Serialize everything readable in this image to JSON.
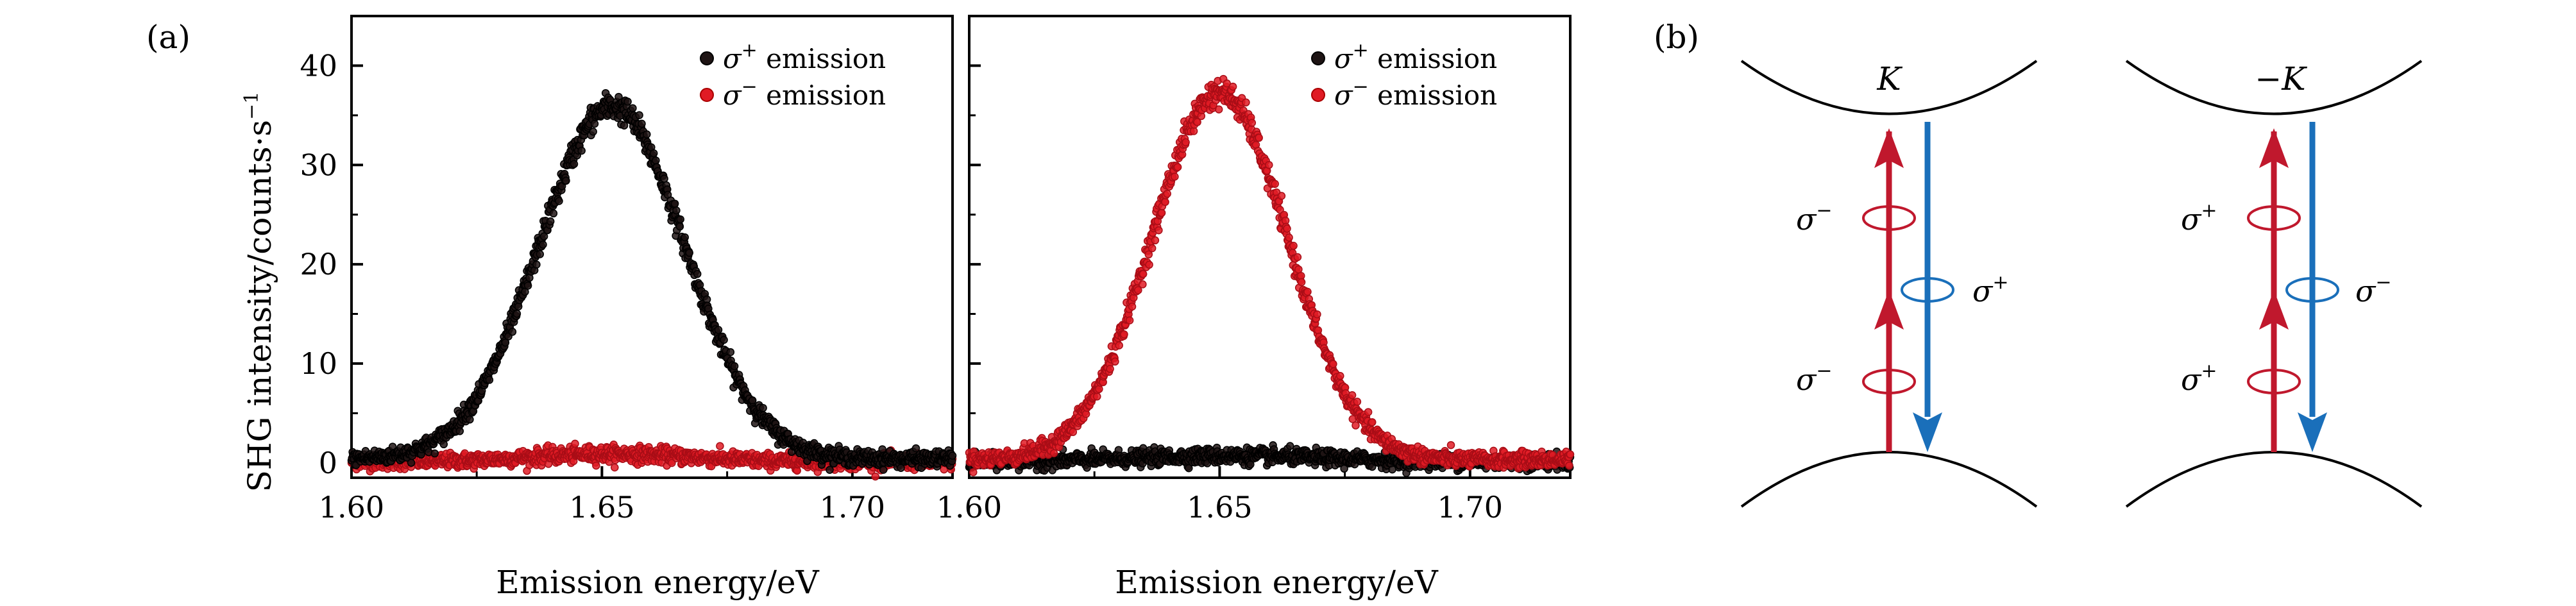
{
  "panel_labels": {
    "a": "(a)",
    "b": "(b)"
  },
  "legend": {
    "entries": [
      {
        "symbol": "σ",
        "sup": "+",
        "text": " emission",
        "color": "#1e1414"
      },
      {
        "symbol": "σ",
        "sup": "−",
        "text": " emission",
        "color": "#e01b24"
      }
    ]
  },
  "chart_data": [
    {
      "type": "scatter",
      "panel": "left",
      "xlabel": "Emission energy/eV",
      "ylabel": "SHG intensity/counts·s",
      "ylabel_sup": "−1",
      "xlim": [
        1.6,
        1.72
      ],
      "ylim": [
        -1.5,
        45
      ],
      "x_ticks": [
        1.6,
        1.65,
        1.7
      ],
      "x_tick_labels": [
        "1.60",
        "1.65",
        "1.70"
      ],
      "y_ticks": [
        0,
        10,
        20,
        30,
        40
      ],
      "y_tick_labels": [
        "0",
        "10",
        "20",
        "30",
        "40"
      ],
      "series": [
        {
          "name": "σ+ emission",
          "color": "#1e1414",
          "peak_x": 1.652,
          "amplitude": 35.5,
          "sigma": 0.0145,
          "baseline": 0.4
        },
        {
          "name": "σ− emission",
          "color": "#e01b24",
          "peak_x": 1.652,
          "amplitude": 0.8,
          "sigma": 0.016,
          "baseline": 0.1
        }
      ]
    },
    {
      "type": "scatter",
      "panel": "middle",
      "xlabel": "Emission energy/eV",
      "xlim": [
        1.6,
        1.72
      ],
      "ylim": [
        -1.5,
        45
      ],
      "x_ticks": [
        1.6,
        1.65,
        1.7
      ],
      "x_tick_labels": [
        "1.60",
        "1.65",
        "1.70"
      ],
      "y_ticks": [
        0,
        10,
        20,
        30,
        40
      ],
      "series": [
        {
          "name": "σ+ emission",
          "color": "#1e1414",
          "peak_x": 1.652,
          "amplitude": 0.6,
          "sigma": 0.02,
          "baseline": 0.1
        },
        {
          "name": "σ− emission",
          "color": "#e01b24",
          "peak_x": 1.65,
          "amplitude": 37,
          "sigma": 0.0135,
          "baseline": 0.3
        }
      ]
    }
  ],
  "diagram": {
    "valleys": [
      {
        "label": "K",
        "minus": "",
        "absorption": [
          "σ",
          "−"
        ],
        "emission": [
          "σ",
          "+"
        ]
      },
      {
        "label": "K",
        "minus": "−",
        "absorption": [
          "σ",
          "+"
        ],
        "emission": [
          "σ",
          "−"
        ]
      }
    ],
    "colors": {
      "absorption": "#c0182d",
      "emission": "#1a6fba",
      "band": "#000000"
    }
  }
}
